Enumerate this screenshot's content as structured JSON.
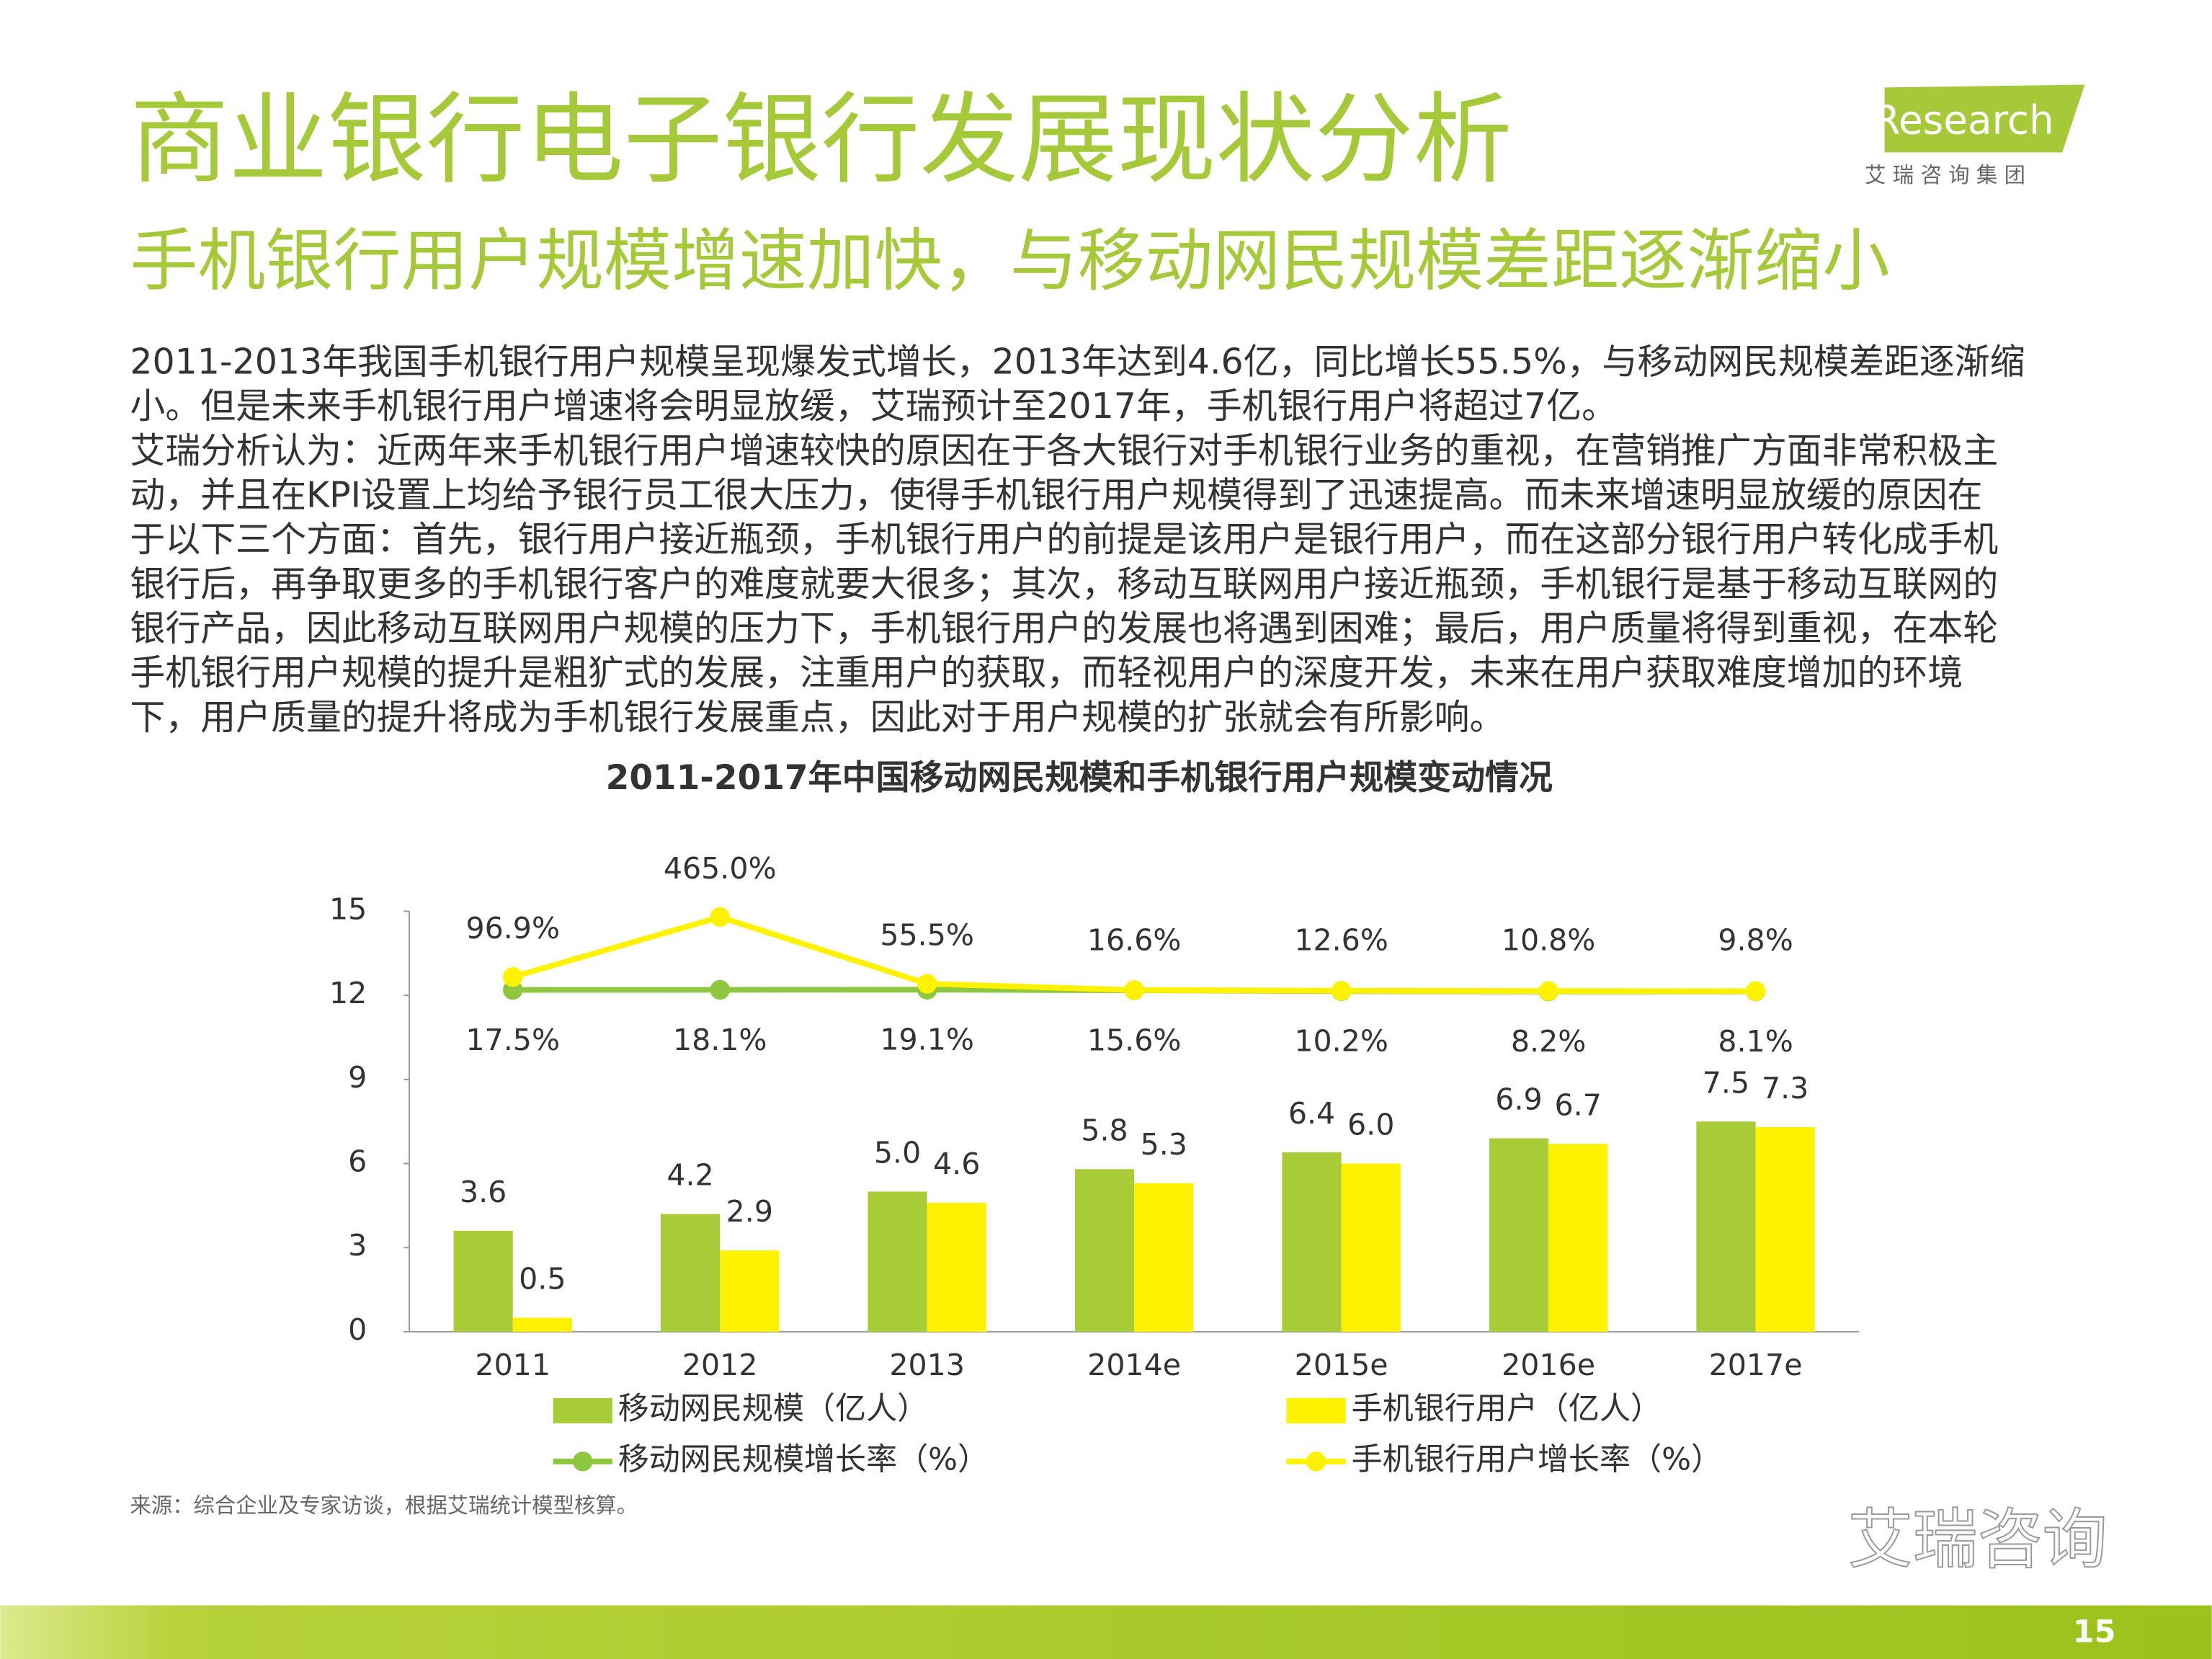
{
  "header": {
    "title": "商业银行电子银行发展现状分析",
    "subtitle": "手机银行用户规模增速加快，与移动网民规模差距逐渐缩小",
    "logo": "iResearch",
    "logo_sub": "艾 瑞 咨 询 集 团"
  },
  "body": {
    "lines": [
      "2011-2013年我国手机银行用户规模呈现爆发式增长，2013年达到4.6亿，同比增长55.5%，与移动网民规模差距逐渐缩",
      "小。但是未来手机银行用户增速将会明显放缓，艾瑞预计至2017年，手机银行用户将超过7亿。",
      "艾瑞分析认为：近两年来手机银行用户增速较快的原因在于各大银行对手机银行业务的重视，在营销推广方面非常积极主",
      "动，并且在KPI设置上均给予银行员工很大压力，使得手机银行用户规模得到了迅速提高。而未来增速明显放缓的原因在",
      "于以下三个方面：首先，银行用户接近瓶颈，手机银行用户的前提是该用户是银行用户，而在这部分银行用户转化成手机",
      "银行后，再争取更多的手机银行客户的难度就要大很多；其次，移动互联网用户接近瓶颈，手机银行是基于移动互联网的",
      "银行产品，因此移动互联网用户规模的压力下，手机银行用户的发展也将遇到困难；最后，用户质量将得到重视，在本轮",
      "手机银行用户规模的提升是粗犷式的发展，注重用户的获取，而轻视用户的深度开发，未来在用户获取难度增加的环境",
      "下，用户质量的提升将成为手机银行发展重点，因此对于用户规模的扩张就会有所影响。"
    ]
  },
  "chart_data": {
    "type": "bar",
    "title": "2011-2017年中国移动网民规模和手机银行用户规模变动情况",
    "categories": [
      "2011",
      "2012",
      "2013",
      "2014e",
      "2015e",
      "2016e",
      "2017e"
    ],
    "ylim": [
      0,
      15
    ],
    "yticks": [
      0,
      3,
      6,
      9,
      12,
      15
    ],
    "y2lim": [
      -2080,
      500
    ],
    "series": [
      {
        "name": "移动网民规模（亿人）",
        "type": "bar",
        "color": "#a8cb38",
        "values": [
          3.6,
          4.2,
          5.0,
          5.8,
          6.4,
          6.9,
          7.5
        ],
        "value_labels": [
          "3.6",
          "4.2",
          "5.0",
          "5.8",
          "6.4",
          "6.9",
          "7.5"
        ]
      },
      {
        "name": "手机银行用户（亿人）",
        "type": "bar",
        "color": "#fff200",
        "values": [
          0.5,
          2.9,
          4.6,
          5.3,
          6.0,
          6.7,
          7.3
        ],
        "value_labels": [
          "0.5",
          "2.9",
          "4.6",
          "5.3",
          "6.0",
          "6.7",
          "7.3"
        ]
      },
      {
        "name": "移动网民规模增长率（%）",
        "type": "line",
        "axis": "y2",
        "color": "#8dc63f",
        "values": [
          17.5,
          18.1,
          19.1,
          15.6,
          10.2,
          8.2,
          8.1
        ],
        "value_labels": [
          "17.5%",
          "18.1%",
          "19.1%",
          "15.6%",
          "10.2%",
          "8.2%",
          "8.1%"
        ]
      },
      {
        "name": "手机银行用户增长率（%）",
        "type": "line",
        "axis": "y2",
        "color": "#fff200",
        "values": [
          96.9,
          465.0,
          55.5,
          16.6,
          12.6,
          10.8,
          9.8
        ],
        "value_labels": [
          "96.9%",
          "465.0%",
          "55.5%",
          "16.6%",
          "12.6%",
          "10.8%",
          "9.8%"
        ]
      }
    ]
  },
  "footer": {
    "source": "来源：综合企业及专家访谈，根据艾瑞统计模型核算。",
    "watermark": "艾瑞咨询",
    "page": "15"
  }
}
